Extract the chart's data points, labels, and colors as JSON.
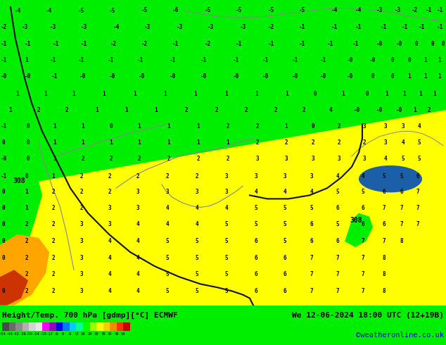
{
  "title_left": "Height/Temp. 700 hPa [gdmp][°C] ECMWF",
  "title_right": "We 12-06-2024 18:00 UTC (12+19B)",
  "credit": "©weatheronline.co.uk",
  "fig_width": 6.34,
  "fig_height": 4.9,
  "dpi": 100,
  "green_color": "#00ee00",
  "yellow_color": "#ffff00",
  "orange_color": "#ffa500",
  "red_color": "#cc3300",
  "blue_blob_color": "#1a5fa8",
  "green_blob_color": "#00ee00",
  "contour_color": "#111111",
  "country_line_color": "#888888",
  "text_color": "#000000",
  "blue_text": "#0000cc",
  "colorbar_colors": [
    "#4a4a4a",
    "#6a6a6a",
    "#8c8c8c",
    "#b0b0b0",
    "#d4d4d4",
    "#e8e8e8",
    "#ff00ff",
    "#9900bb",
    "#0000ee",
    "#0077ff",
    "#00ccff",
    "#00ff99",
    "#00ff00",
    "#99ff00",
    "#ffff00",
    "#ffcc00",
    "#ff8800",
    "#ff3300",
    "#cc0000"
  ],
  "colorbar_labels": [
    "-54",
    "-48",
    "-42",
    "-36",
    "-30",
    "-24",
    "-18",
    "-12",
    "-6",
    "0",
    "6",
    "12",
    "18",
    "24",
    "30",
    "36",
    "42",
    "48",
    "54"
  ]
}
